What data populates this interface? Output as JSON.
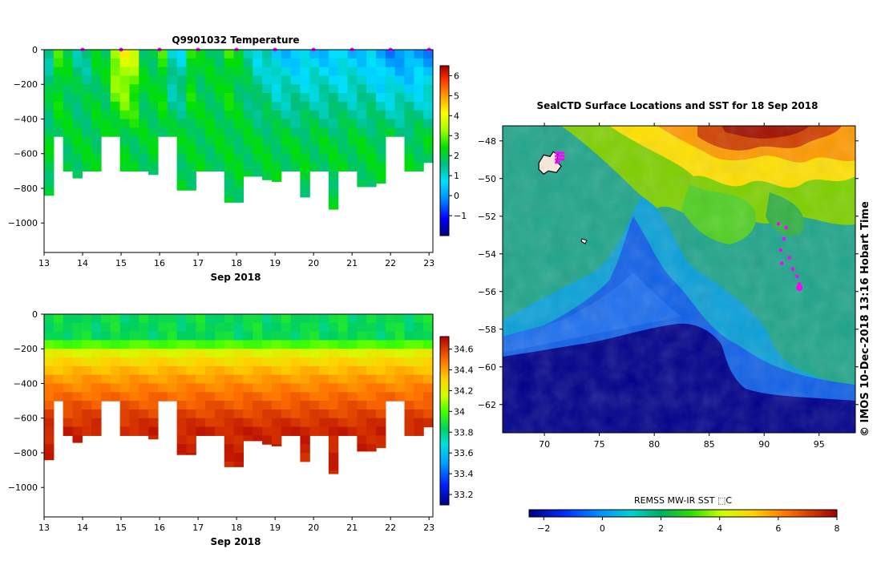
{
  "chart_data": [
    {
      "type": "heatmap",
      "title": "Q9901032  Temperature",
      "xlabel": "Sep 2018",
      "x_ticks": [
        "13",
        "14",
        "15",
        "16",
        "17",
        "18",
        "19",
        "20",
        "21",
        "22",
        "23"
      ],
      "y_ticks": [
        "0",
        "−200",
        "−400",
        "−600",
        "−800",
        "−1000"
      ],
      "xlim": [
        13,
        23.1
      ],
      "ylim": [
        -1170,
        0
      ],
      "colorbar_ticks": [
        "6",
        "5",
        "4",
        "3",
        "2",
        "1",
        "0",
        "−1"
      ],
      "colorbar_range": [
        -2,
        6.5
      ],
      "profile_max_depth": [
        -840,
        -500,
        -700,
        -740,
        -700,
        -700,
        -500,
        -500,
        -700,
        -700,
        -700,
        -720,
        -500,
        -500,
        -810,
        -810,
        -700,
        -700,
        -700,
        -880,
        -880,
        -730,
        -730,
        -750,
        -760,
        -700,
        -700,
        -850,
        -700,
        -700,
        -920,
        -700,
        -700,
        -790,
        -790,
        -770,
        -500,
        -500,
        -700,
        -700,
        -650
      ],
      "surface_values": [
        1.5,
        2.5,
        2.0,
        1.5,
        1.5,
        2.0,
        2.0,
        3.5,
        4.0,
        3.5,
        2.0,
        2.0,
        2.5,
        1.0,
        1.0,
        2.5,
        2.0,
        2.0,
        2.0,
        2.5,
        2.0,
        1.5,
        1.0,
        1.0,
        0.5,
        0.5,
        0.5,
        0.5,
        0.5,
        0.5,
        0.5,
        0.5,
        0.5,
        0.5,
        0.5,
        0.0,
        0.0,
        0.0,
        0.0,
        0.0,
        0.0
      ],
      "deep_value": 2.0,
      "marker_days": [
        14,
        15,
        16,
        17,
        18,
        19,
        20,
        21,
        22,
        23
      ]
    },
    {
      "type": "heatmap",
      "title": "",
      "xlabel": "Sep 2018",
      "x_ticks": [
        "13",
        "14",
        "15",
        "16",
        "17",
        "18",
        "19",
        "20",
        "21",
        "22",
        "23"
      ],
      "y_ticks": [
        "0",
        "−200",
        "−400",
        "−600",
        "−800",
        "−1000"
      ],
      "xlim": [
        13,
        23.1
      ],
      "ylim": [
        -1170,
        0
      ],
      "colorbar_ticks": [
        "34.6",
        "34.4",
        "34.2",
        "34",
        "33.8",
        "33.6",
        "33.4",
        "33.2"
      ],
      "colorbar_range": [
        33.1,
        34.72
      ],
      "surface_value": 33.85,
      "halocline_top": -150,
      "deep_value": 34.65
    },
    {
      "type": "heatmap",
      "title": "SealCTD Surface Locations and SST for 18 Sep 2018",
      "xlabel": "",
      "x_ticks": [
        "70",
        "75",
        "80",
        "85",
        "90",
        "95"
      ],
      "y_ticks": [
        "−48",
        "−50",
        "−52",
        "−54",
        "−56",
        "−58",
        "−60",
        "−62"
      ],
      "xlim": [
        66.2,
        98.3
      ],
      "ylim": [
        -63.5,
        -47.2
      ],
      "colorbar_label": "REMSS MW-IR SST ⬚C",
      "colorbar_ticks": [
        "−2",
        "0",
        "2",
        "4",
        "6",
        "8"
      ],
      "colorbar_range": [
        -2.5,
        8
      ],
      "seal_locations": [
        {
          "lon": 92.0,
          "lat": -52.6
        },
        {
          "lon": 91.8,
          "lat": -53.2
        },
        {
          "lon": 91.5,
          "lat": -53.8
        },
        {
          "lon": 92.3,
          "lat": -54.2
        },
        {
          "lon": 91.6,
          "lat": -54.5
        },
        {
          "lon": 92.6,
          "lat": -54.8
        },
        {
          "lon": 93.0,
          "lat": -55.2
        },
        {
          "lon": 93.2,
          "lat": -55.6
        },
        {
          "lon": 91.3,
          "lat": -52.4
        }
      ],
      "current_location": {
        "lon": 93.2,
        "lat": -55.8
      },
      "kerguelen_cluster": {
        "lon": 71.1,
        "lat": -49.0
      }
    }
  ],
  "credit": "© IMOS 10-Dec-2018 13:16 Hobart Time",
  "colors": {
    "marker": "#ff00ff",
    "land": "#000000",
    "ice": "#00008b"
  }
}
